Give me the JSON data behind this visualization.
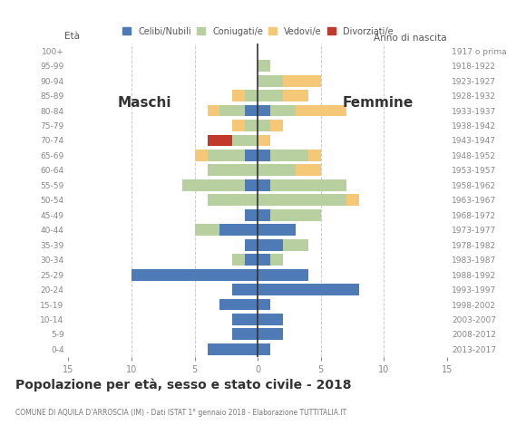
{
  "age_groups": [
    "0-4",
    "5-9",
    "10-14",
    "15-19",
    "20-24",
    "25-29",
    "30-34",
    "35-39",
    "40-44",
    "45-49",
    "50-54",
    "55-59",
    "60-64",
    "65-69",
    "70-74",
    "75-79",
    "80-84",
    "85-89",
    "90-94",
    "95-99",
    "100+"
  ],
  "birth_years": [
    "2013-2017",
    "2008-2012",
    "2003-2007",
    "1998-2002",
    "1993-1997",
    "1988-1992",
    "1983-1987",
    "1978-1982",
    "1973-1977",
    "1968-1972",
    "1963-1967",
    "1958-1962",
    "1953-1957",
    "1948-1952",
    "1943-1947",
    "1938-1942",
    "1933-1937",
    "1928-1932",
    "1923-1927",
    "1918-1922",
    "1917 o prima"
  ],
  "males": {
    "celibi": [
      4,
      2,
      2,
      3,
      2,
      10,
      1,
      1,
      3,
      1,
      0,
      1,
      0,
      1,
      0,
      0,
      1,
      0,
      0,
      0,
      0
    ],
    "coniugati": [
      0,
      0,
      0,
      0,
      0,
      0,
      1,
      0,
      2,
      0,
      4,
      5,
      4,
      3,
      2,
      1,
      2,
      1,
      0,
      0,
      0
    ],
    "vedovi": [
      0,
      0,
      0,
      0,
      0,
      0,
      0,
      0,
      0,
      0,
      0,
      0,
      0,
      1,
      0,
      1,
      1,
      1,
      0,
      0,
      0
    ],
    "divorziati": [
      0,
      0,
      0,
      0,
      0,
      0,
      0,
      0,
      0,
      0,
      0,
      0,
      0,
      0,
      2,
      0,
      0,
      0,
      0,
      0,
      0
    ]
  },
  "females": {
    "celibi": [
      1,
      2,
      2,
      1,
      8,
      4,
      1,
      2,
      3,
      1,
      0,
      1,
      0,
      1,
      0,
      0,
      1,
      0,
      0,
      0,
      0
    ],
    "coniugati": [
      0,
      0,
      0,
      0,
      0,
      0,
      1,
      2,
      0,
      4,
      7,
      6,
      3,
      3,
      0,
      1,
      2,
      2,
      2,
      1,
      0
    ],
    "vedovi": [
      0,
      0,
      0,
      0,
      0,
      0,
      0,
      0,
      0,
      0,
      1,
      0,
      2,
      1,
      1,
      1,
      4,
      2,
      3,
      0,
      0
    ],
    "divorziati": [
      0,
      0,
      0,
      0,
      0,
      0,
      0,
      0,
      0,
      0,
      0,
      0,
      0,
      0,
      0,
      0,
      0,
      0,
      0,
      0,
      0
    ]
  },
  "colors": {
    "celibi": "#4e7ab5",
    "coniugati": "#b8cfa0",
    "vedovi": "#f5c878",
    "divorziati": "#c0392b"
  },
  "legend_labels": [
    "Celibi/Nubili",
    "Coniugati/e",
    "Vedovi/e",
    "Divorziati/e"
  ],
  "title": "Popolazione per età, sesso e stato civile - 2018",
  "subtitle": "COMUNE DI AQUILA D'ARROSCIA (IM) - Dati ISTAT 1° gennaio 2018 - Elaborazione TUTTITALIA.IT",
  "xlabel_left": "Maschi",
  "xlabel_right": "Femmine",
  "ylabel_left": "Età",
  "ylabel_right": "Anno di nascita",
  "xlim": 15,
  "background_color": "#ffffff",
  "grid_color": "#cccccc",
  "tick_label_color": "#888888"
}
